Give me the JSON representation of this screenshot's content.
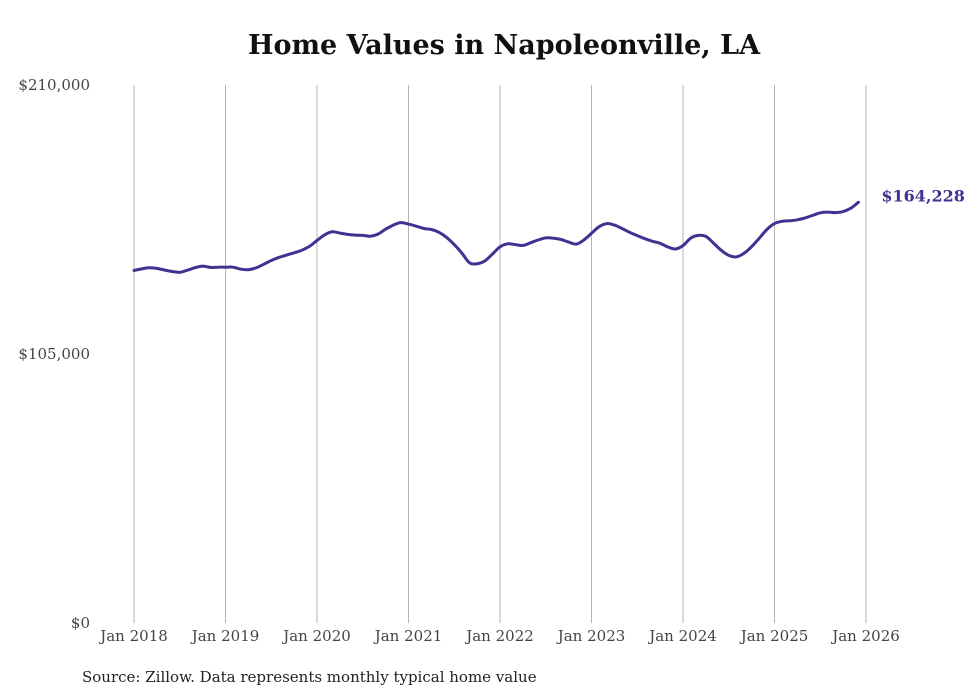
{
  "chart_data": {
    "type": "line",
    "title": "Home Values in Napoleonville, LA",
    "xlabel": "",
    "ylabel": "",
    "ylim": [
      0,
      210000
    ],
    "yticks": [
      0,
      105000,
      210000
    ],
    "ytick_labels": [
      "$0",
      "$105,000",
      "$210,000"
    ],
    "xticks": [
      "Jan 2018",
      "Jan 2019",
      "Jan 2020",
      "Jan 2021",
      "Jan 2022",
      "Jan 2023",
      "Jan 2024",
      "Jan 2025",
      "Jan 2026"
    ],
    "grid": "vertical",
    "line_color": "#3d3491",
    "end_label": "$164,228",
    "series": [
      {
        "name": "Typical home value",
        "x_start": "Jan 2018",
        "frequency": "monthly",
        "values": [
          137600,
          138200,
          138700,
          138400,
          137800,
          137200,
          136900,
          137700,
          138700,
          139300,
          138800,
          138900,
          138900,
          138900,
          138100,
          137900,
          138600,
          140000,
          141500,
          142700,
          143600,
          144500,
          145500,
          147000,
          149300,
          151500,
          152700,
          152200,
          151700,
          151400,
          151300,
          151000,
          151800,
          153700,
          155300,
          156300,
          155700,
          154900,
          154000,
          153600,
          152500,
          150500,
          147700,
          144400,
          140600,
          140200,
          141300,
          144000,
          146800,
          148000,
          147700,
          147400,
          148400,
          149500,
          150300,
          150200,
          149700,
          148700,
          147900,
          149500,
          152100,
          154700,
          155900,
          155300,
          154000,
          152500,
          151200,
          150000,
          149000,
          148200,
          146800,
          146000,
          147300,
          150200,
          151300,
          150900,
          148300,
          145500,
          143500,
          142900,
          144300,
          146900,
          150200,
          153600,
          155900,
          156800,
          157000,
          157400,
          158100,
          159100,
          160100,
          160400,
          160200,
          160600,
          161900,
          164228
        ]
      }
    ]
  },
  "footer": {
    "source": "Source: Zillow. Data represents monthly typical home value"
  }
}
